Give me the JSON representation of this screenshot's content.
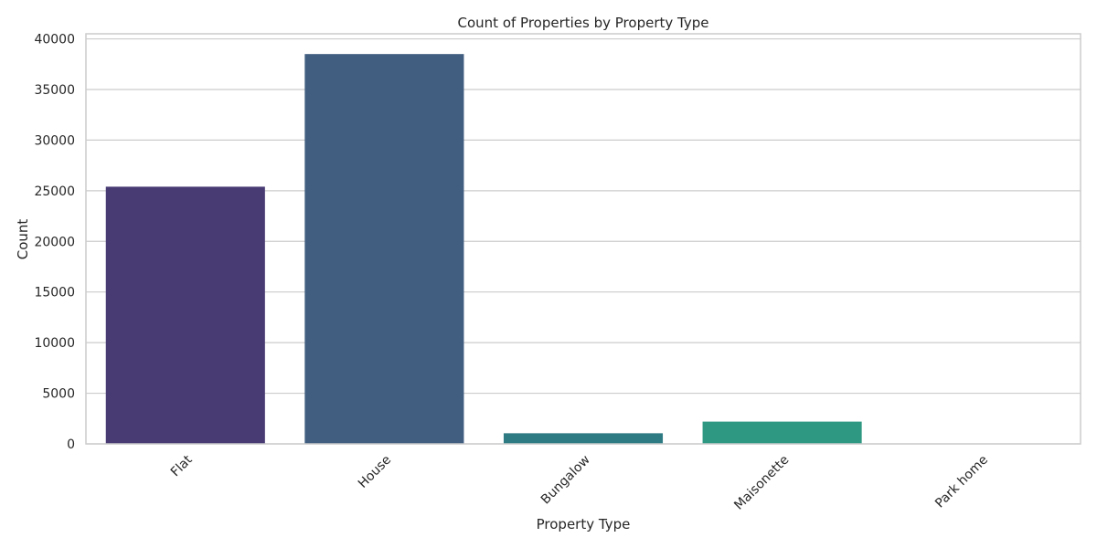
{
  "chart_data": {
    "type": "bar",
    "title": "Count of Properties by Property Type",
    "xlabel": "Property Type",
    "ylabel": "Count",
    "categories": [
      "Flat",
      "House",
      "Bungalow",
      "Maisonette",
      "Park home"
    ],
    "values": [
      25400,
      38500,
      1050,
      2200,
      30
    ],
    "colors": [
      "#483a73",
      "#415e80",
      "#2f7b84",
      "#2f9882",
      "#3aae73"
    ],
    "ylim": [
      0,
      40500
    ],
    "yticks": [
      0,
      5000,
      10000,
      15000,
      20000,
      25000,
      30000,
      35000,
      40000
    ],
    "grid": true,
    "xtick_rotation": 45
  }
}
